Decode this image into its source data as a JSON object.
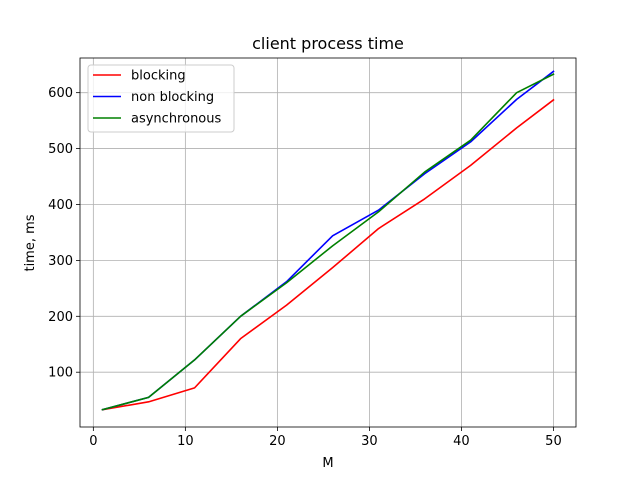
{
  "chart_data": {
    "type": "line",
    "title": "client process time",
    "xlabel": "M",
    "ylabel": "time, ms",
    "xlim": [
      -1.45,
      52.45
    ],
    "ylim": [
      2,
      662
    ],
    "xticks": [
      0,
      10,
      20,
      30,
      40,
      50
    ],
    "yticks": [
      100,
      200,
      300,
      400,
      500,
      600
    ],
    "grid": true,
    "legend_position": "top-left",
    "x": [
      1,
      6,
      11,
      16,
      21,
      26,
      31,
      36,
      41,
      46,
      50
    ],
    "series": [
      {
        "name": "blocking",
        "color": "#ff0000",
        "values": [
          33,
          47,
          72,
          160,
          220,
          287,
          357,
          410,
          470,
          537,
          587
        ]
      },
      {
        "name": "non blocking",
        "color": "#0000ff",
        "values": [
          33,
          55,
          122,
          200,
          262,
          344,
          390,
          455,
          512,
          588,
          638
        ]
      },
      {
        "name": "asynchronous",
        "color": "#008000",
        "values": [
          33,
          55,
          122,
          200,
          260,
          326,
          387,
          458,
          515,
          600,
          633
        ]
      }
    ]
  }
}
